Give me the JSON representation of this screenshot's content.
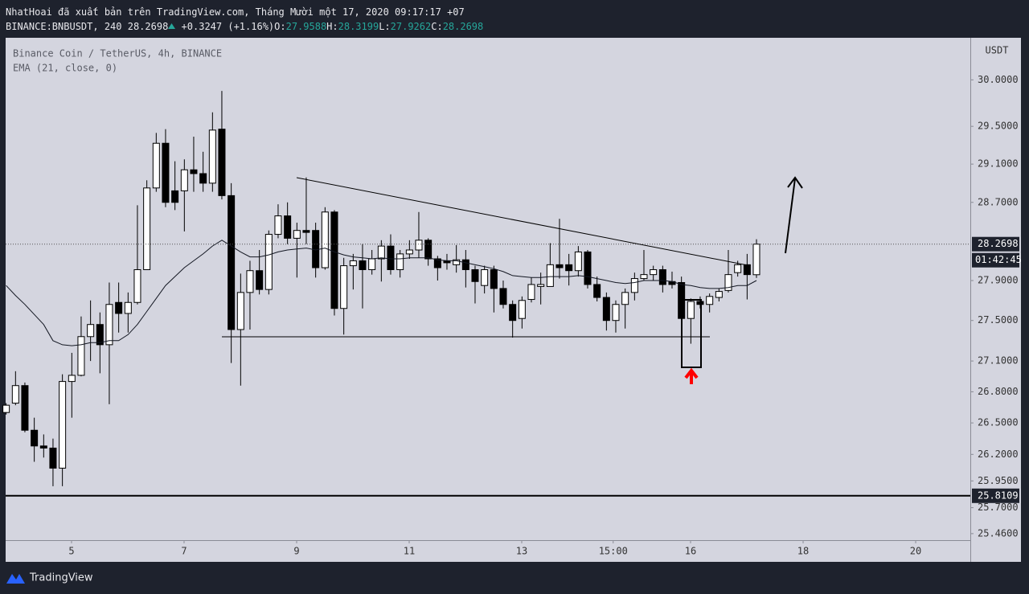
{
  "header": {
    "line1": "NhatHoai đã xuất bản trên TradingView.com, Tháng Mười một 17, 2020 09:17:17 +07",
    "symbol": "BINANCE:BNBUSDT, 240",
    "price": "28.2698",
    "change": "+0.3247 (+1.16%)",
    "ohlc": [
      {
        "label": "O:",
        "value": "27.9588"
      },
      {
        "label": "H:",
        "value": "28.3199"
      },
      {
        "label": "L:",
        "value": "27.9262"
      },
      {
        "label": "C:",
        "value": "28.2698"
      }
    ]
  },
  "footer": {
    "brand": "TradingView"
  },
  "chart_data": {
    "type": "candlestick",
    "title": "Binance Coin / TetherUS, 4h, BINANCE",
    "y_axis_label": "USDT",
    "log_scale": true,
    "grid": false,
    "up_color": "#ffffff",
    "down_color": "#000000",
    "outline_color": "#000000",
    "x": [
      3.838,
      4.005,
      4.171,
      4.338,
      4.505,
      4.671,
      4.838,
      5.005,
      5.171,
      5.338,
      5.505,
      5.671,
      5.838,
      6.005,
      6.171,
      6.338,
      6.505,
      6.671,
      6.838,
      7.005,
      7.171,
      7.338,
      7.505,
      7.671,
      7.838,
      8.005,
      8.171,
      8.338,
      8.505,
      8.671,
      8.838,
      9.005,
      9.171,
      9.338,
      9.505,
      9.671,
      9.838,
      10.005,
      10.171,
      10.338,
      10.505,
      10.671,
      10.838,
      11.005,
      11.171,
      11.338,
      11.505,
      11.671,
      11.838,
      12.005,
      12.171,
      12.338,
      12.505,
      12.671,
      12.838,
      13.005,
      13.171,
      13.338,
      13.505,
      13.671,
      13.838,
      14.005,
      14.171,
      14.338,
      14.505,
      14.671,
      14.838,
      15.005,
      15.171,
      15.338,
      15.505,
      15.671,
      15.838,
      16.005,
      16.171,
      16.338,
      16.505,
      16.671,
      16.838,
      17.005,
      17.171
    ],
    "open": [
      26.6,
      26.69,
      26.86,
      26.43,
      26.28,
      26.26,
      26.07,
      26.9,
      26.96,
      27.34,
      27.46,
      27.26,
      27.68,
      27.57,
      27.68,
      28.01,
      28.85,
      29.32,
      28.82,
      28.82,
      29.04,
      29.0,
      28.9,
      29.47,
      28.77,
      27.41,
      27.78,
      28.0,
      27.81,
      28.37,
      28.56,
      28.33,
      28.41,
      28.41,
      28.03,
      28.6,
      27.62,
      28.05,
      28.1,
      28.01,
      28.12,
      28.25,
      28.01,
      28.17,
      28.21,
      28.31,
      28.12,
      28.1,
      28.06,
      28.11,
      28.01,
      27.85,
      28.01,
      27.82,
      27.66,
      27.52,
      27.71,
      27.84,
      27.84,
      28.06,
      28.06,
      28.0,
      28.19,
      27.86,
      27.73,
      27.5,
      27.66,
      27.78,
      27.92,
      27.96,
      28.01,
      27.89,
      27.88,
      27.52,
      27.69,
      27.66,
      27.73,
      27.8,
      27.98,
      28.06,
      27.9588
    ],
    "high": [
      26.69,
      27.0,
      26.89,
      26.55,
      26.39,
      26.35,
      26.97,
      27.18,
      27.54,
      27.7,
      27.58,
      27.88,
      27.88,
      27.78,
      28.67,
      28.93,
      29.43,
      29.47,
      29.13,
      29.15,
      29.39,
      29.23,
      29.65,
      29.88,
      28.9,
      27.97,
      28.1,
      28.21,
      28.41,
      28.68,
      28.7,
      28.49,
      28.96,
      28.49,
      28.65,
      28.62,
      28.13,
      28.17,
      28.27,
      28.21,
      28.31,
      28.37,
      28.21,
      28.31,
      28.6,
      28.33,
      28.15,
      28.17,
      28.26,
      28.21,
      28.05,
      28.05,
      28.05,
      27.9,
      27.7,
      27.74,
      27.93,
      27.98,
      28.28,
      28.53,
      28.17,
      28.25,
      28.21,
      27.94,
      27.78,
      27.7,
      27.82,
      27.98,
      28.21,
      28.05,
      28.05,
      27.99,
      27.94,
      27.72,
      27.74,
      27.77,
      27.82,
      28.21,
      28.1,
      28.17,
      28.3199
    ],
    "low": [
      26.58,
      26.67,
      26.41,
      26.13,
      26.17,
      25.9,
      25.9,
      26.55,
      26.95,
      27.1,
      26.98,
      26.68,
      27.38,
      27.38,
      27.66,
      28.01,
      28.81,
      28.65,
      28.62,
      28.4,
      28.81,
      28.81,
      28.81,
      28.73,
      27.08,
      26.86,
      27.41,
      27.76,
      27.76,
      28.33,
      28.27,
      27.93,
      28.27,
      27.93,
      28.01,
      27.55,
      27.36,
      27.81,
      27.62,
      27.96,
      27.89,
      27.96,
      27.93,
      28.12,
      28.13,
      28.05,
      27.9,
      28.01,
      27.98,
      27.83,
      27.67,
      27.77,
      27.58,
      27.62,
      27.33,
      27.42,
      27.68,
      27.66,
      27.84,
      27.92,
      27.85,
      27.94,
      27.82,
      27.69,
      27.4,
      27.38,
      27.42,
      27.7,
      27.9,
      27.9,
      27.78,
      27.82,
      27.5,
      27.27,
      27.62,
      27.58,
      27.69,
      27.78,
      27.94,
      27.71,
      27.9262
    ],
    "close": [
      26.67,
      26.86,
      26.43,
      26.28,
      26.26,
      26.07,
      26.9,
      26.96,
      27.34,
      27.46,
      27.26,
      27.66,
      27.57,
      27.68,
      28.01,
      28.85,
      29.32,
      28.7,
      28.7,
      29.04,
      29.0,
      28.9,
      29.46,
      28.77,
      27.41,
      27.78,
      28.0,
      27.81,
      28.37,
      28.56,
      28.33,
      28.41,
      28.39,
      28.03,
      28.6,
      27.62,
      28.05,
      28.1,
      28.01,
      28.12,
      28.25,
      28.01,
      28.17,
      28.21,
      28.31,
      28.12,
      28.03,
      28.08,
      28.11,
      28.01,
      27.89,
      28.01,
      27.82,
      27.66,
      27.5,
      27.7,
      27.86,
      27.86,
      28.06,
      28.03,
      28.0,
      28.19,
      27.86,
      27.73,
      27.5,
      27.66,
      27.78,
      27.92,
      27.96,
      28.01,
      27.86,
      27.86,
      27.52,
      27.69,
      27.66,
      27.74,
      27.79,
      27.96,
      28.06,
      27.96,
      28.2698
    ],
    "ema": {
      "name": "EMA (21, close, 0)",
      "color": "#131722",
      "values": [
        27.85,
        27.75,
        27.66,
        27.56,
        27.46,
        27.3,
        27.26,
        27.25,
        27.26,
        27.28,
        27.28,
        27.3,
        27.3,
        27.36,
        27.46,
        27.59,
        27.72,
        27.85,
        27.94,
        28.03,
        28.1,
        28.17,
        28.25,
        28.31,
        28.25,
        28.19,
        28.14,
        28.14,
        28.16,
        28.19,
        28.21,
        28.22,
        28.23,
        28.21,
        28.23,
        28.19,
        28.16,
        28.14,
        28.13,
        28.12,
        28.13,
        28.12,
        28.12,
        28.13,
        28.13,
        28.13,
        28.11,
        28.1,
        28.1,
        28.08,
        28.06,
        28.04,
        28.02,
        27.99,
        27.95,
        27.94,
        27.93,
        27.93,
        27.94,
        27.94,
        27.94,
        27.95,
        27.94,
        27.92,
        27.9,
        27.88,
        27.87,
        27.88,
        27.9,
        27.9,
        27.9,
        27.89,
        27.86,
        27.85,
        27.83,
        27.82,
        27.82,
        27.83,
        27.85,
        27.85,
        27.9
      ]
    },
    "price_line": 25.8109,
    "countdown": "01:42:45",
    "xlim": [
      3.829,
      20.971
    ],
    "xticks": [
      5,
      7,
      9,
      11,
      13,
      {
        "value": 14.625,
        "label": "15:00"
      },
      16,
      18,
      20
    ],
    "ylim": [
      25.4,
      30.46
    ],
    "yticks": [
      {
        "value": 30,
        "label": "30.0000"
      },
      {
        "value": 29.5,
        "label": "29.5000"
      },
      {
        "value": 29.1,
        "label": "29.1000"
      },
      {
        "value": 28.7,
        "label": "28.7000"
      },
      {
        "value": 27.9,
        "label": "27.9000"
      },
      {
        "value": 27.5,
        "label": "27.5000"
      },
      {
        "value": 27.1,
        "label": "27.1000"
      },
      {
        "value": 26.8,
        "label": "26.8000"
      },
      {
        "value": 26.5,
        "label": "26.5000"
      },
      {
        "value": 26.2,
        "label": "26.2000"
      },
      {
        "value": 25.95,
        "label": "25.9500"
      },
      {
        "value": 25.7,
        "label": "25.7000"
      },
      {
        "value": 25.46,
        "label": "25.4600"
      }
    ]
  }
}
